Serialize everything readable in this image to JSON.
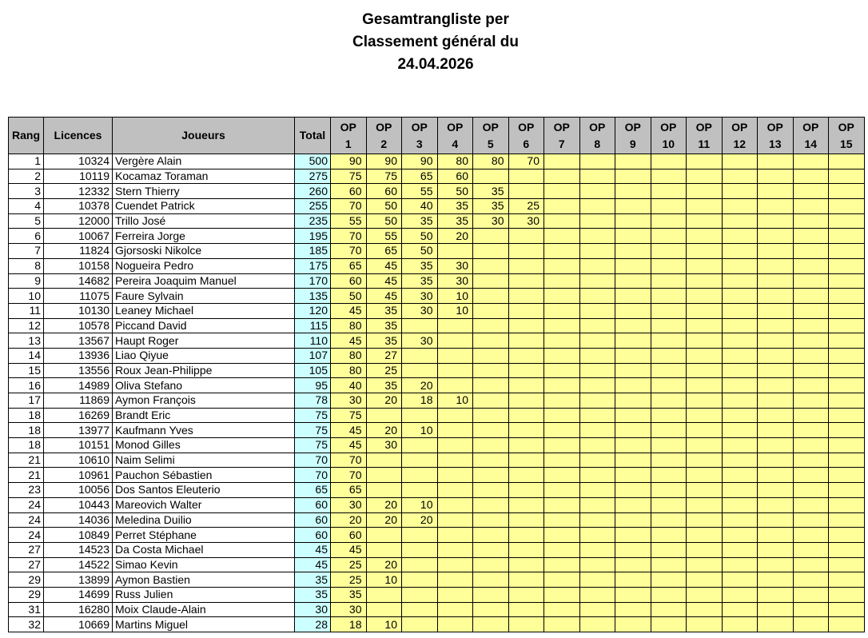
{
  "title": {
    "line1": "Gesamtrangliste per",
    "line2": "Classement général du",
    "line3": "24.04.2026"
  },
  "colors": {
    "header": "#c0c0c0",
    "total": "#ccffff",
    "op": "#ffff99"
  },
  "table": {
    "headers": {
      "rang": "Rang",
      "licences": "Licences",
      "joueurs": "Joueurs",
      "total": "Total"
    },
    "op_headers": [
      {
        "top": "OP",
        "num": "1"
      },
      {
        "top": "OP",
        "num": "2"
      },
      {
        "top": "OP",
        "num": "3"
      },
      {
        "top": "OP",
        "num": "4"
      },
      {
        "top": "OP",
        "num": "5"
      },
      {
        "top": "OP",
        "num": "6"
      },
      {
        "top": "OP",
        "num": "7"
      },
      {
        "top": "OP",
        "num": "8"
      },
      {
        "top": "OP",
        "num": "9"
      },
      {
        "top": "OP",
        "num": "10"
      },
      {
        "top": "OP",
        "num": "11"
      },
      {
        "top": "OP",
        "num": "12"
      },
      {
        "top": "OP",
        "num": "13"
      },
      {
        "top": "OP",
        "num": "14"
      },
      {
        "top": "OP",
        "num": "15"
      }
    ],
    "rows": [
      {
        "rang": "1",
        "licence": "10324",
        "joueur": "Vergère Alain",
        "total": "500",
        "op": [
          "90",
          "90",
          "90",
          "80",
          "80",
          "70"
        ]
      },
      {
        "rang": "2",
        "licence": "10119",
        "joueur": "Kocamaz Toraman",
        "total": "275",
        "op": [
          "75",
          "75",
          "65",
          "60"
        ]
      },
      {
        "rang": "3",
        "licence": "12332",
        "joueur": "Stern Thierry",
        "total": "260",
        "op": [
          "60",
          "60",
          "55",
          "50",
          "35"
        ]
      },
      {
        "rang": "4",
        "licence": "10378",
        "joueur": "Cuendet Patrick",
        "total": "255",
        "op": [
          "70",
          "50",
          "40",
          "35",
          "35",
          "25"
        ]
      },
      {
        "rang": "5",
        "licence": "12000",
        "joueur": "Trillo José",
        "total": "235",
        "op": [
          "55",
          "50",
          "35",
          "35",
          "30",
          "30"
        ]
      },
      {
        "rang": "6",
        "licence": "10067",
        "joueur": "Ferreira Jorge",
        "total": "195",
        "op": [
          "70",
          "55",
          "50",
          "20"
        ]
      },
      {
        "rang": "7",
        "licence": "11824",
        "joueur": "Gjorsoski Nikolce",
        "total": "185",
        "op": [
          "70",
          "65",
          "50"
        ]
      },
      {
        "rang": "8",
        "licence": "10158",
        "joueur": "Nogueira Pedro",
        "total": "175",
        "op": [
          "65",
          "45",
          "35",
          "30"
        ]
      },
      {
        "rang": "9",
        "licence": "14682",
        "joueur": "Pereira Joaquim Manuel",
        "total": "170",
        "op": [
          "60",
          "45",
          "35",
          "30"
        ]
      },
      {
        "rang": "10",
        "licence": "11075",
        "joueur": "Faure Sylvain",
        "total": "135",
        "op": [
          "50",
          "45",
          "30",
          "10"
        ]
      },
      {
        "rang": "11",
        "licence": "10130",
        "joueur": "Leaney Michael",
        "total": "120",
        "op": [
          "45",
          "35",
          "30",
          "10"
        ]
      },
      {
        "rang": "12",
        "licence": "10578",
        "joueur": "Piccand David",
        "total": "115",
        "op": [
          "80",
          "35"
        ]
      },
      {
        "rang": "13",
        "licence": "13567",
        "joueur": "Haupt Roger",
        "total": "110",
        "op": [
          "45",
          "35",
          "30"
        ]
      },
      {
        "rang": "14",
        "licence": "13936",
        "joueur": "Liao Qiyue",
        "total": "107",
        "op": [
          "80",
          "27"
        ]
      },
      {
        "rang": "15",
        "licence": "13556",
        "joueur": "Roux Jean-Philippe",
        "total": "105",
        "op": [
          "80",
          "25"
        ]
      },
      {
        "rang": "16",
        "licence": "14989",
        "joueur": "Oliva Stefano",
        "total": "95",
        "op": [
          "40",
          "35",
          "20"
        ]
      },
      {
        "rang": "17",
        "licence": "11869",
        "joueur": "Aymon François",
        "total": "78",
        "op": [
          "30",
          "20",
          "18",
          "10"
        ]
      },
      {
        "rang": "18",
        "licence": "16269",
        "joueur": "Brandt Eric",
        "total": "75",
        "op": [
          "75"
        ]
      },
      {
        "rang": "18",
        "licence": "13977",
        "joueur": "Kaufmann Yves",
        "total": "75",
        "op": [
          "45",
          "20",
          "10"
        ]
      },
      {
        "rang": "18",
        "licence": "10151",
        "joueur": "Monod Gilles",
        "total": "75",
        "op": [
          "45",
          "30"
        ]
      },
      {
        "rang": "21",
        "licence": "10610",
        "joueur": "Naim Selimi",
        "total": "70",
        "op": [
          "70"
        ]
      },
      {
        "rang": "21",
        "licence": "10961",
        "joueur": "Pauchon Sébastien",
        "total": "70",
        "op": [
          "70"
        ]
      },
      {
        "rang": "23",
        "licence": "10056",
        "joueur": "Dos Santos Eleuterio",
        "total": "65",
        "op": [
          "65"
        ]
      },
      {
        "rang": "24",
        "licence": "10443",
        "joueur": "Mareovich Walter",
        "total": "60",
        "op": [
          "30",
          "20",
          "10"
        ]
      },
      {
        "rang": "24",
        "licence": "14036",
        "joueur": "Meledina Duilio",
        "total": "60",
        "op": [
          "20",
          "20",
          "20"
        ]
      },
      {
        "rang": "24",
        "licence": "10849",
        "joueur": "Perret Stéphane",
        "total": "60",
        "op": [
          "60"
        ]
      },
      {
        "rang": "27",
        "licence": "14523",
        "joueur": "Da Costa Michael",
        "total": "45",
        "op": [
          "45"
        ]
      },
      {
        "rang": "27",
        "licence": "14522",
        "joueur": "Simao Kevin",
        "total": "45",
        "op": [
          "25",
          "20"
        ]
      },
      {
        "rang": "29",
        "licence": "13899",
        "joueur": "Aymon Bastien",
        "total": "35",
        "op": [
          "25",
          "10"
        ]
      },
      {
        "rang": "29",
        "licence": "14699",
        "joueur": "Russ Julien",
        "total": "35",
        "op": [
          "35"
        ]
      },
      {
        "rang": "31",
        "licence": "16280",
        "joueur": "Moix Claude-Alain",
        "total": "30",
        "op": [
          "30"
        ]
      },
      {
        "rang": "32",
        "licence": "10669",
        "joueur": "Martins Miguel",
        "total": "28",
        "op": [
          "18",
          "10"
        ]
      }
    ]
  }
}
